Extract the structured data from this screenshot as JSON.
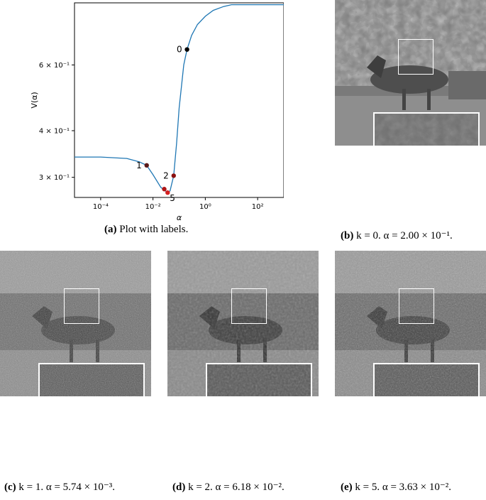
{
  "chart_data": {
    "type": "line",
    "xlabel": "α",
    "ylabel": "V(α)",
    "xscale": "log",
    "yscale": "log",
    "xlim": [
      1e-05,
      1000.0
    ],
    "ylim": [
      0.265,
      0.88
    ],
    "x_ticks": [
      {
        "value": 0.0001,
        "label": "10⁻⁴"
      },
      {
        "value": 0.01,
        "label": "10⁻²"
      },
      {
        "value": 1,
        "label": "10⁰"
      },
      {
        "value": 100,
        "label": "10²"
      }
    ],
    "y_ticks": [
      {
        "value": 0.3,
        "label": "3 × 10⁻¹"
      },
      {
        "value": 0.4,
        "label": "4 × 10⁻¹"
      },
      {
        "value": 0.6,
        "label": "6 × 10⁻¹"
      }
    ],
    "series": [
      {
        "color": "#1f77b4",
        "x": [
          1e-05,
          0.0001,
          0.001,
          0.003,
          0.00574,
          0.01,
          0.02,
          0.0363,
          0.045,
          0.0618,
          0.08,
          0.1,
          0.15,
          0.2,
          0.3,
          0.5,
          1,
          2,
          5,
          10,
          100,
          1000
        ],
        "y": [
          0.34,
          0.34,
          0.337,
          0.33,
          0.323,
          0.305,
          0.282,
          0.273,
          0.276,
          0.303,
          0.37,
          0.46,
          0.6,
          0.66,
          0.72,
          0.77,
          0.81,
          0.84,
          0.86,
          0.87,
          0.87,
          0.87
        ]
      }
    ],
    "markers": [
      {
        "x": 0.00574,
        "y": 0.323,
        "label": "1",
        "color": "#5a1a1a"
      },
      {
        "x": 0.0618,
        "y": 0.303,
        "label": "2",
        "color": "#8b1010"
      },
      {
        "x": 0.027,
        "y": 0.279,
        "label": "",
        "color": "#b01515"
      },
      {
        "x": 0.0363,
        "y": 0.273,
        "label": "5",
        "color": "#d42020"
      },
      {
        "x": 0.2,
        "y": 0.66,
        "label": "0",
        "color": "#000000"
      }
    ]
  },
  "captions": {
    "a": {
      "tag": "(a)",
      "text": "Plot with labels."
    },
    "b": {
      "tag": "(b)",
      "text": "k = 0. α = 2.00 × 10⁻¹."
    },
    "c": {
      "tag": "(c)",
      "text": "k = 1. α = 5.74 × 10⁻³."
    },
    "d": {
      "tag": "(d)",
      "text": "k = 2. α = 6.18 × 10⁻²."
    },
    "e": {
      "tag": "(e)",
      "text": "k = 5. α = 3.63 × 10⁻²."
    }
  },
  "images": {
    "b": {
      "subject": "horse-in-field-denoised-heavy"
    },
    "c": {
      "subject": "horse-in-field-noisy"
    },
    "d": {
      "subject": "horse-in-field-denoised-smooth"
    },
    "e": {
      "subject": "horse-in-field-denoised-balanced"
    }
  }
}
